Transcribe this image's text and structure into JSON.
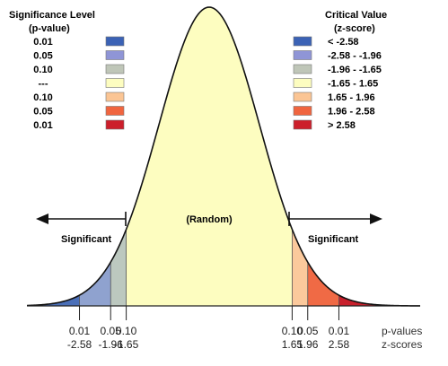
{
  "left_legend": {
    "title_line1": "Significance Level",
    "title_line2": "(p-value)",
    "items": [
      {
        "label": "0.01",
        "color": "#3b62b5"
      },
      {
        "label": "0.05",
        "color": "#8f95d6"
      },
      {
        "label": "0.10",
        "color": "#bfc6b8"
      },
      {
        "label": "---",
        "color": "#fdfdc0"
      },
      {
        "label": "0.10",
        "color": "#fbc594"
      },
      {
        "label": "0.05",
        "color": "#f0653f"
      },
      {
        "label": "0.01",
        "color": "#cc1f2b"
      }
    ]
  },
  "right_legend": {
    "title_line1": "Critical Value",
    "title_line2": "(z-score)",
    "items": [
      {
        "label": "< -2.58",
        "color": "#3b62b5"
      },
      {
        "label": "-2.58 - -1.96",
        "color": "#8f95d6"
      },
      {
        "label": "-1.96 - -1.65",
        "color": "#bfc6b8"
      },
      {
        "label": "-1.65 - 1.65",
        "color": "#fdfdc0"
      },
      {
        "label": "1.65 - 1.96",
        "color": "#fbc594"
      },
      {
        "label": "1.96 - 2.58",
        "color": "#f0653f"
      },
      {
        "label": "> 2.58",
        "color": "#cc1f2b"
      }
    ]
  },
  "curve": {
    "center_label": "(Random)",
    "left_region_label": "Significant",
    "right_region_label": "Significant",
    "tail_colors": {
      "left_0_01": "#4a6fb8",
      "left_0_05": "#8fa2cf",
      "left_0_10": "#bcc8bf",
      "center": "#fdfdc0",
      "right_0_10": "#fbc99c",
      "right_0_05": "#f06a45",
      "right_0_01": "#c8202c"
    }
  },
  "axis": {
    "p_caption": "p-values",
    "z_caption": "z-scores",
    "ticks": [
      {
        "z": -2.58,
        "p_label": "0.01",
        "z_label": "-2.58"
      },
      {
        "z": -1.96,
        "p_label": "0.05",
        "z_label": "-1.96"
      },
      {
        "z": -1.65,
        "p_label": "0.10",
        "z_label": "-1.65"
      },
      {
        "z": 1.65,
        "p_label": "0.10",
        "z_label": "1.65"
      },
      {
        "z": 1.96,
        "p_label": "0.05",
        "z_label": "1.96"
      },
      {
        "z": 2.58,
        "p_label": "0.01",
        "z_label": "2.58"
      }
    ]
  }
}
